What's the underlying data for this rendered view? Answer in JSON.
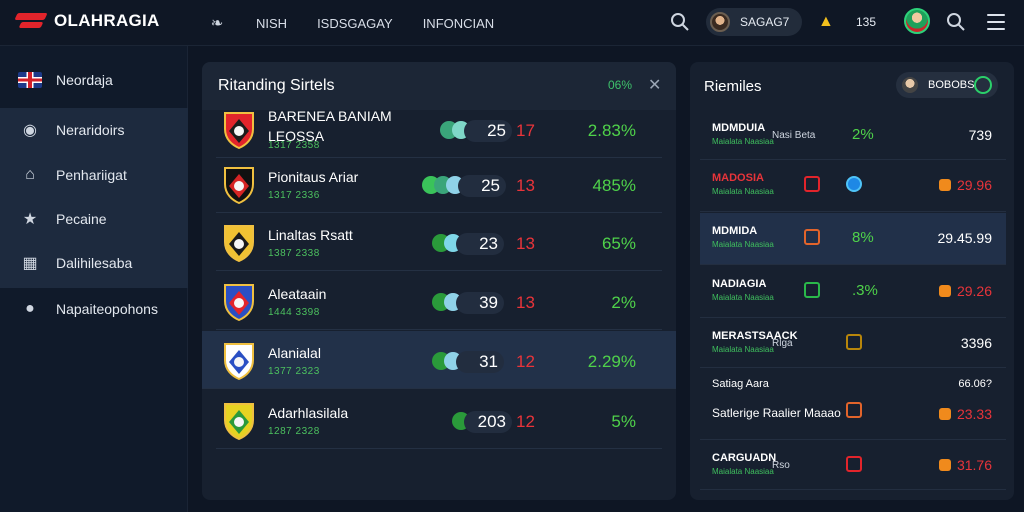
{
  "app": {
    "title": "OLAHRAGIA"
  },
  "nav": {
    "items": [
      {
        "label": "NISH",
        "icon": "leaf-icon"
      },
      {
        "label": "ISDSGAGAY"
      },
      {
        "label": "INFONCIAN"
      }
    ]
  },
  "topbar": {
    "account_label": "SAGAG7",
    "count": "135"
  },
  "sidebar": {
    "items": [
      {
        "label": "Neordaja",
        "icon": "uk-flag-icon"
      },
      {
        "label": "Neraridoirs",
        "icon": "medal-icon"
      },
      {
        "label": "Penhariigat",
        "icon": "home-icon"
      },
      {
        "label": "Pecaine",
        "icon": "trophy-icon"
      },
      {
        "label": "Dalihilesaba",
        "icon": "chart-icon"
      },
      {
        "label": "Napaiteopohons",
        "icon": "user-icon"
      }
    ]
  },
  "main": {
    "title": "Ritanding Sirtels",
    "pct": "06%",
    "rows": [
      {
        "name": "BARENEA BANIAM",
        "name2": "LEOSSA",
        "sub": "1317 2358",
        "score": "25",
        "red": "17",
        "pct": "2.83%",
        "crest": [
          "#e2242b",
          "#1b1b1b"
        ]
      },
      {
        "name": "Pionitaus Ariar",
        "sub": "1317 2336",
        "score": "25",
        "red": "13",
        "pct": "485%",
        "crest": [
          "#111111",
          "#d52424"
        ]
      },
      {
        "name": "Linaltas Rsatt",
        "sub": "1387 2338",
        "score": "23",
        "red": "13",
        "pct": "65%",
        "crest": [
          "#f1c233",
          "#1b1b1b"
        ]
      },
      {
        "name": "Aleataain",
        "sub": "1444 3398",
        "score": "39",
        "red": "13",
        "pct": "2%",
        "crest": [
          "#2a4fc4",
          "#e2242b"
        ]
      },
      {
        "name": "Alanialal",
        "sub": "1377 2323",
        "score": "31",
        "red": "12",
        "pct": "2.29%",
        "crest": [
          "#ffffff",
          "#2a4fc4"
        ]
      },
      {
        "name": "Adarhlasilala",
        "sub": "1287 2328",
        "score": "203",
        "red": "12",
        "pct": "5%",
        "crest": [
          "#e7d322",
          "#2b9a3a"
        ]
      }
    ]
  },
  "side": {
    "title": "Riemiles",
    "chip_label": "BOBOBS",
    "rows": [
      {
        "name": "MDMDUIA",
        "sub": "Maialata Naasiaa",
        "mid": "Nasi Beta",
        "pct": "2%",
        "val": "739",
        "red": false
      },
      {
        "name": "MADOSIA",
        "sub": "Maialata Naasiaa",
        "mid": "",
        "pct": "",
        "val": "29.96",
        "red": true
      },
      {
        "name": "MDMIDA",
        "sub": "Maialata Naasiaa",
        "mid": "",
        "pct": "8%",
        "val": "29.45.99",
        "red": false
      },
      {
        "name": "NADIAGIA",
        "sub": "Maialata Naasiaa",
        "mid": "",
        "pct": ".3%",
        "val": "29.26",
        "red": true
      },
      {
        "name": "MERASTSAACK",
        "sub": "Maialata Naasiaa",
        "mid": "Rlga",
        "pct": "",
        "val": "3396",
        "red": false
      },
      {
        "name": "Satiag Aara",
        "sub": "Satlerige Raalier Maaao",
        "mid": "",
        "pct": "",
        "val": "23.33",
        "val_top": "66.06?",
        "red": true
      },
      {
        "name": "CARGUADN",
        "sub": "Maialata Naasiaa",
        "mid": "Rso",
        "pct": "",
        "val": "31.76",
        "red": true
      }
    ]
  }
}
